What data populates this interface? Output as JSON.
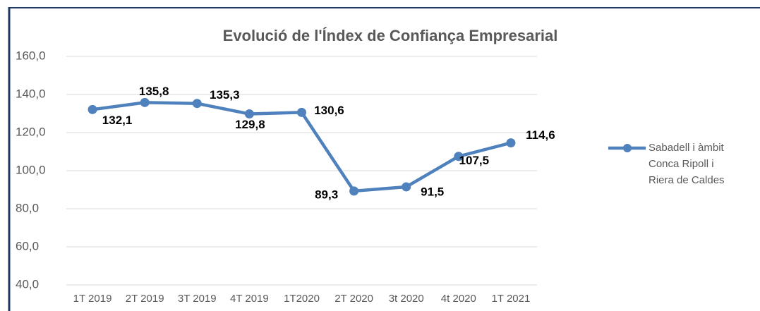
{
  "chart_data": {
    "type": "line",
    "title": "Evolució  de l'Índex de Confiança Empresarial",
    "categories": [
      "1T 2019",
      "2T 2019",
      "3T 2019",
      "4T 2019",
      "1T2020",
      "2T 2020",
      "3t 2020",
      "4t 2020",
      "1T 2021"
    ],
    "series": [
      {
        "name": "Sabadell i àmbit Conca Ripoll i Riera de Caldes",
        "color": "#4f81bd",
        "values": [
          132.1,
          135.8,
          135.3,
          129.8,
          130.6,
          89.3,
          91.5,
          107.5,
          114.6
        ],
        "value_labels": [
          "132,1",
          "135,8",
          "135,3",
          "129,8",
          "130,6",
          "89,3",
          "91,5",
          "107,5",
          "114,6"
        ]
      }
    ],
    "ylim": [
      40,
      160
    ],
    "yticks": [
      {
        "value": 40,
        "label": "40,0"
      },
      {
        "value": 60,
        "label": "60,0"
      },
      {
        "value": 80,
        "label": "80,0"
      },
      {
        "value": 100,
        "label": "100,0"
      },
      {
        "value": 120,
        "label": "120,0"
      },
      {
        "value": 140,
        "label": "140,0"
      },
      {
        "value": 160,
        "label": "160,0"
      }
    ],
    "grid": true,
    "legend": "right"
  }
}
